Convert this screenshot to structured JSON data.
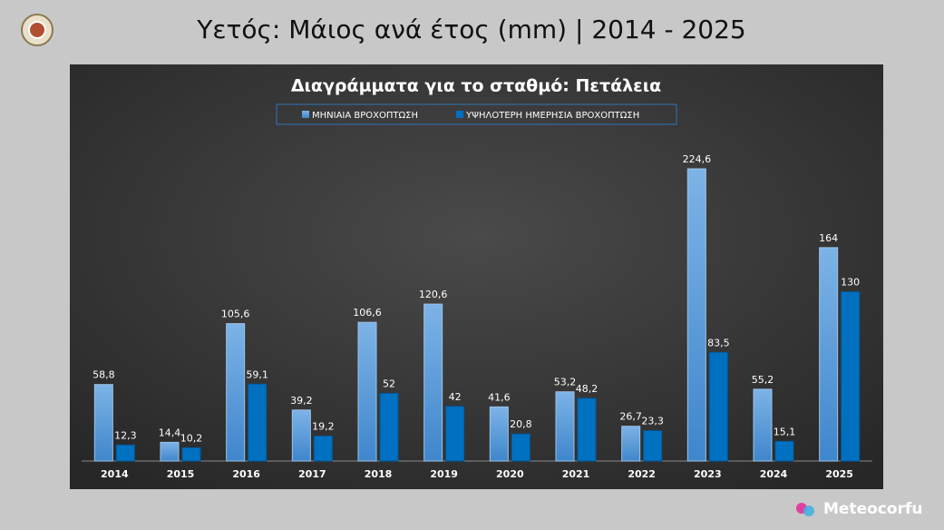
{
  "header": {
    "title": "Υετός: Μάιος ανά έτος (mm) | 2014 - 2025"
  },
  "chart_data": {
    "type": "bar",
    "title": "Διαγράμματα για το σταθμό: Πετάλεια",
    "categories": [
      "2014",
      "2015",
      "2016",
      "2017",
      "2018",
      "2019",
      "2020",
      "2021",
      "2022",
      "2023",
      "2024",
      "2025"
    ],
    "series": [
      {
        "name": "ΜΗΝΙΑΙΑ ΒΡΟΧΟΠΤΩΣΗ",
        "color": "#5b9bd5",
        "values": [
          58.8,
          14.4,
          105.6,
          39.2,
          106.6,
          120.6,
          41.6,
          53.2,
          26.7,
          224.6,
          55.2,
          164
        ],
        "value_labels": [
          "58,8",
          "14,4",
          "105,6",
          "39,2",
          "106,6",
          "120,6",
          "41,6",
          "53,2",
          "26,7",
          "224,6",
          "55,2",
          "164"
        ]
      },
      {
        "name": "ΥΨΗΛΟΤΕΡΗ ΗΜΕΡΗΣΙΑ ΒΡΟΧΟΠΤΩΣΗ",
        "color": "#0070c0",
        "values": [
          12.3,
          10.2,
          59.1,
          19.2,
          52,
          42,
          20.8,
          48.2,
          23.3,
          83.5,
          15.1,
          130
        ],
        "value_labels": [
          "12,3",
          "10,2",
          "59,1",
          "19,2",
          "52",
          "42",
          "20,8",
          "48,2",
          "23,3",
          "83,5",
          "15,1",
          "130"
        ]
      }
    ]
  },
  "footer": {
    "brand": "Meteocorfu"
  }
}
